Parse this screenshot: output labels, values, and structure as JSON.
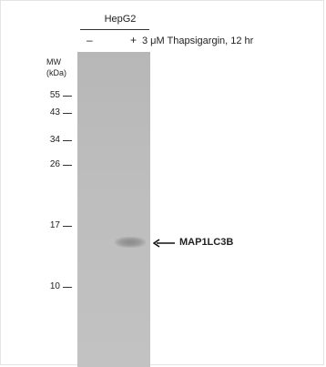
{
  "header": {
    "cell_line": "HepG2",
    "lanes": [
      "–",
      "+"
    ],
    "treatment": "3 μM Thapsigargin, 12 hr"
  },
  "mw_axis": {
    "title_line1": "MW",
    "title_line2": "(kDa)",
    "markers": [
      "55",
      "43",
      "34",
      "26",
      "17",
      "10"
    ]
  },
  "band": {
    "label": "MAP1LC3B",
    "lane": "+",
    "arrow_icon": "left-arrow-icon"
  },
  "colors": {
    "membrane": "#bdbdbd",
    "band": "#8a8a8a",
    "text": "#222222"
  }
}
